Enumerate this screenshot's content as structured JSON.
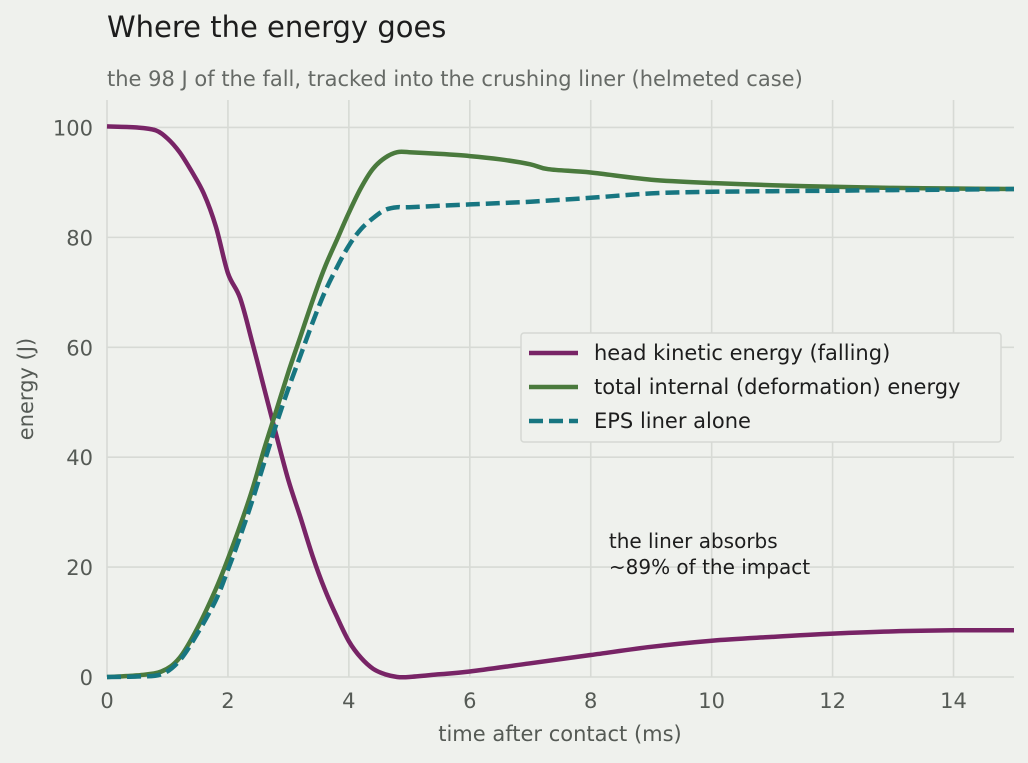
{
  "chart_data": {
    "type": "line",
    "title": "Where the energy goes",
    "subtitle": "the 98 J of the fall, tracked into the crushing liner (helmeted case)",
    "xlabel": "time after contact (ms)",
    "ylabel": "energy (J)",
    "xlim": [
      0,
      15
    ],
    "ylim": [
      0,
      105
    ],
    "xticks": [
      0,
      2,
      4,
      6,
      8,
      10,
      12,
      14
    ],
    "yticks": [
      0,
      20,
      40,
      60,
      80,
      100
    ],
    "grid": true,
    "legend": {
      "placement": "center-right"
    },
    "annotation": {
      "lines": [
        "the liner absorbs",
        "~89% of the impact"
      ],
      "x": 8.3,
      "y": 23.5
    },
    "series": [
      {
        "name": "head kinetic energy (falling)",
        "color": "#782466",
        "style": "solid",
        "x": [
          0,
          0.5,
          0.8,
          1.0,
          1.2,
          1.4,
          1.6,
          1.8,
          2.0,
          2.2,
          2.4,
          2.6,
          2.8,
          3.0,
          3.2,
          3.4,
          3.6,
          3.8,
          4.0,
          4.2,
          4.4,
          4.6,
          4.8,
          5.0,
          5.5,
          6,
          7,
          8,
          9,
          10,
          11,
          12,
          13,
          14,
          15
        ],
        "y": [
          100.2,
          100.0,
          99.5,
          98.0,
          95.5,
          92.0,
          88.0,
          82.0,
          73.5,
          69.0,
          61.0,
          52.5,
          44.0,
          35.8,
          29.0,
          22.0,
          16.0,
          11.0,
          6.5,
          3.5,
          1.5,
          0.5,
          0.0,
          0.0,
          0.5,
          1.0,
          2.5,
          4.0,
          5.5,
          6.6,
          7.3,
          7.9,
          8.3,
          8.5,
          8.5
        ]
      },
      {
        "name": "total internal (deformation) energy",
        "color": "#4a7a3d",
        "style": "solid",
        "x": [
          0,
          0.5,
          0.9,
          1.2,
          1.5,
          1.8,
          2.0,
          2.2,
          2.4,
          2.6,
          2.8,
          3.0,
          3.2,
          3.4,
          3.6,
          3.8,
          4.0,
          4.2,
          4.4,
          4.6,
          4.8,
          5.0,
          5.5,
          6,
          6.5,
          7,
          7.3,
          8,
          9,
          10,
          11,
          12,
          13,
          14,
          15
        ],
        "y": [
          0.0,
          0.3,
          1.0,
          3.5,
          9.0,
          16.0,
          21.5,
          27.5,
          34.0,
          41.5,
          48.5,
          55.5,
          62.0,
          68.5,
          74.5,
          79.5,
          84.5,
          89.0,
          92.5,
          94.5,
          95.5,
          95.5,
          95.2,
          94.8,
          94.2,
          93.3,
          92.4,
          91.8,
          90.5,
          89.9,
          89.5,
          89.2,
          89.0,
          88.9,
          88.8
        ]
      },
      {
        "name": "EPS liner alone",
        "color": "#177681",
        "style": "dashed",
        "x": [
          0,
          0.5,
          0.9,
          1.2,
          1.5,
          1.8,
          2.0,
          2.2,
          2.4,
          2.6,
          2.8,
          3.0,
          3.2,
          3.4,
          3.6,
          3.8,
          4.0,
          4.2,
          4.4,
          4.6,
          4.8,
          5.0,
          6,
          7,
          8,
          9,
          10,
          11,
          12,
          13,
          14,
          15
        ],
        "y": [
          0.0,
          0.1,
          0.5,
          3.0,
          8.0,
          14.0,
          19.5,
          25.5,
          32.0,
          39.0,
          46.0,
          52.5,
          58.5,
          64.5,
          70.0,
          74.5,
          78.5,
          81.5,
          83.5,
          85.0,
          85.5,
          85.5,
          86.0,
          86.5,
          87.2,
          88.0,
          88.3,
          88.4,
          88.5,
          88.6,
          88.7,
          88.8
        ]
      }
    ]
  }
}
